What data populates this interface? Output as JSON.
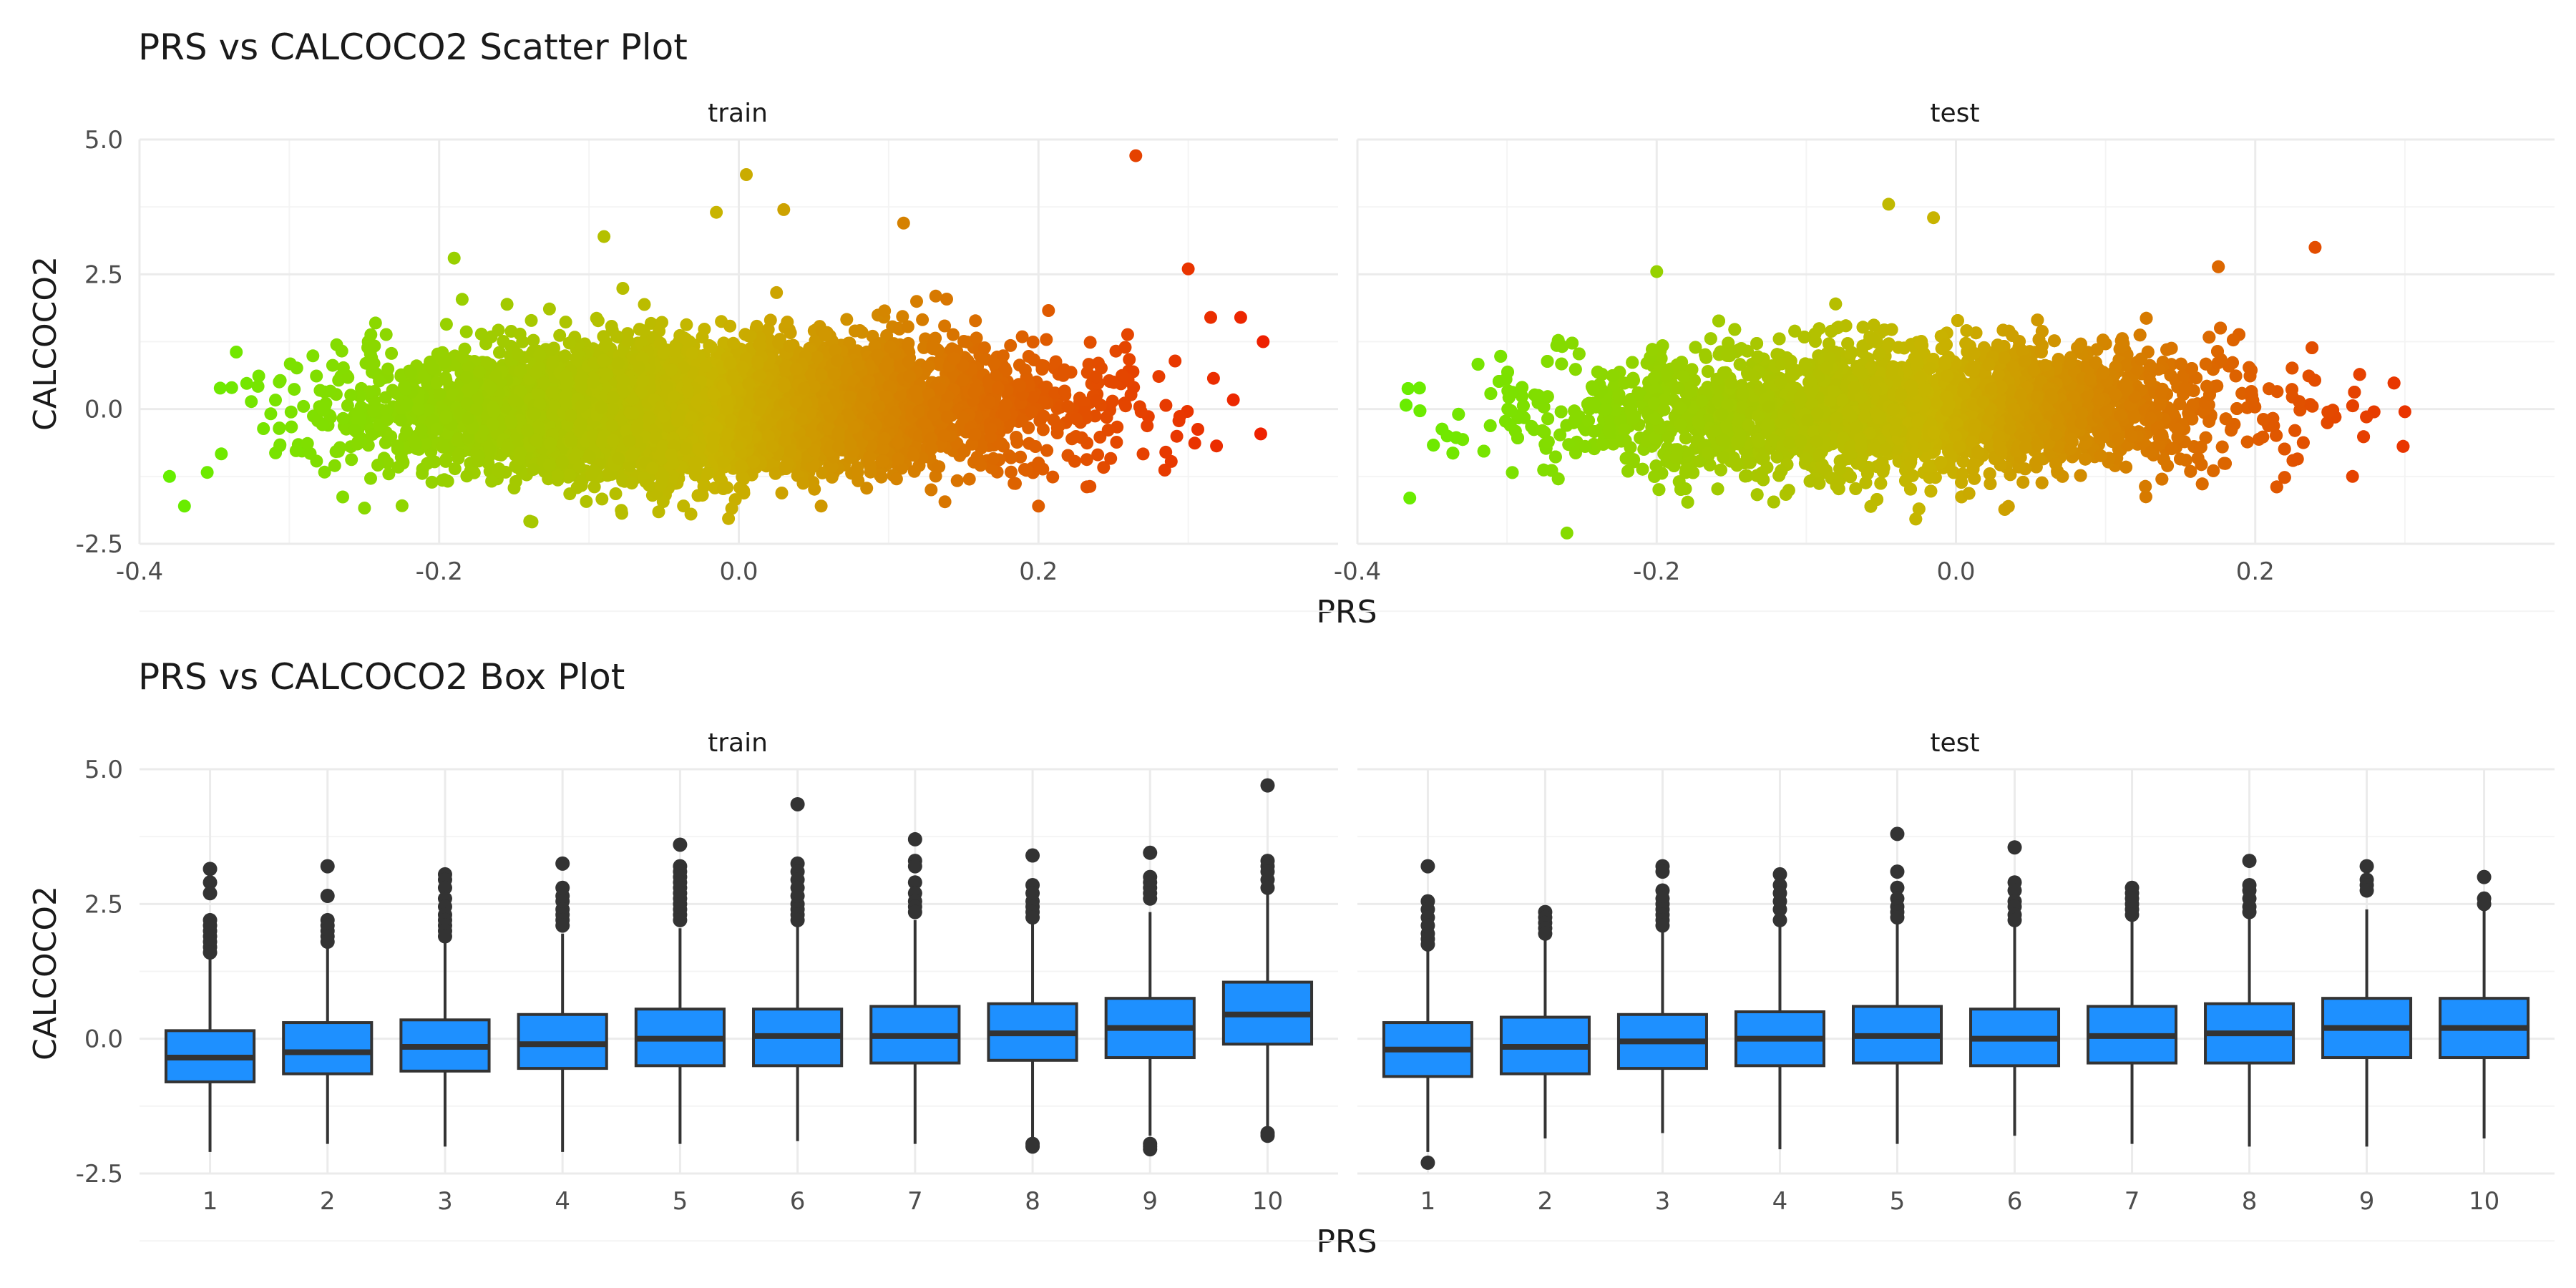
{
  "chart_data": [
    {
      "type": "scatter",
      "title": "PRS vs CALCOCO2 Scatter Plot",
      "xlabel": "PRS",
      "ylabel": "CALCOCO2",
      "panels": [
        "train",
        "test"
      ],
      "xlim": [
        -0.4,
        0.4
      ],
      "ylim": [
        -2.5,
        5.0
      ],
      "x_ticks": [
        "-0.4",
        "-0.2",
        "0.0",
        "0.2"
      ],
      "y_ticks": [
        "5.0",
        "2.5",
        "0.0",
        "-2.5"
      ],
      "color_scale": {
        "low": "#66ee00",
        "mid": "#c8b400",
        "high": "#ee2000"
      },
      "grid": true,
      "legend": "none",
      "series": [
        {
          "panel": "train",
          "x_range": [
            -0.38,
            0.35
          ],
          "y_center": 0.0,
          "y_spread": 0.6,
          "outliers": [
            [
              0.005,
              4.35
            ],
            [
              0.265,
              4.7
            ],
            [
              -0.38,
              -1.25
            ],
            [
              -0.37,
              -1.8
            ],
            [
              0.35,
              1.25
            ],
            [
              0.335,
              1.7
            ],
            [
              0.315,
              1.7
            ],
            [
              0.3,
              2.6
            ],
            [
              0.2,
              -1.8
            ],
            [
              0.285,
              -0.8
            ],
            [
              -0.19,
              2.8
            ],
            [
              -0.09,
              3.2
            ],
            [
              0.03,
              3.7
            ],
            [
              -0.015,
              3.65
            ],
            [
              0.11,
              3.45
            ]
          ]
        },
        {
          "panel": "test",
          "x_range": [
            -0.37,
            0.3
          ],
          "y_center": 0.0,
          "y_spread": 0.6,
          "outliers": [
            [
              -0.365,
              -1.65
            ],
            [
              0.3,
              -0.05
            ],
            [
              -0.2,
              2.55
            ],
            [
              -0.045,
              3.8
            ],
            [
              -0.015,
              3.55
            ],
            [
              0.24,
              3.0
            ],
            [
              -0.26,
              -2.3
            ],
            [
              0.265,
              -1.25
            ],
            [
              -0.34,
              -0.5
            ]
          ]
        }
      ]
    },
    {
      "type": "box",
      "title": "PRS vs CALCOCO2 Box Plot",
      "xlabel": "PRS",
      "ylabel": "CALCOCO2",
      "panels": [
        "train",
        "test"
      ],
      "categories": [
        "1",
        "2",
        "3",
        "4",
        "5",
        "6",
        "7",
        "8",
        "9",
        "10"
      ],
      "ylim": [
        -2.5,
        5.0
      ],
      "y_ticks": [
        "5.0",
        "2.5",
        "0.0",
        "-2.5"
      ],
      "fill": "#1e90ff",
      "grid": true,
      "series": [
        {
          "panel": "train",
          "boxes": [
            {
              "q1": -0.8,
              "median": -0.35,
              "q3": 0.15,
              "low": -2.1,
              "high": 1.5,
              "outliers": [
                3.15,
                2.9,
                2.7,
                2.2,
                2.1,
                2.0,
                1.9,
                1.8,
                1.7,
                1.6
              ]
            },
            {
              "q1": -0.65,
              "median": -0.25,
              "q3": 0.3,
              "low": -1.95,
              "high": 1.7,
              "outliers": [
                3.2,
                2.65,
                2.2,
                2.1,
                2.0,
                1.9,
                1.8
              ]
            },
            {
              "q1": -0.6,
              "median": -0.15,
              "q3": 0.35,
              "low": -2.0,
              "high": 1.8,
              "outliers": [
                3.05,
                2.95,
                2.8,
                2.6,
                2.45,
                2.3,
                2.2,
                2.1,
                2.0,
                1.9
              ]
            },
            {
              "q1": -0.55,
              "median": -0.1,
              "q3": 0.45,
              "low": -2.1,
              "high": 1.95,
              "outliers": [
                3.25,
                2.8,
                2.65,
                2.55,
                2.4,
                2.3,
                2.2,
                2.1
              ]
            },
            {
              "q1": -0.5,
              "median": 0.0,
              "q3": 0.55,
              "low": -1.95,
              "high": 2.05,
              "outliers": [
                3.6,
                3.2,
                3.1,
                3.0,
                2.9,
                2.8,
                2.7,
                2.6,
                2.5,
                2.4,
                2.3,
                2.2
              ]
            },
            {
              "q1": -0.5,
              "median": 0.05,
              "q3": 0.55,
              "low": -1.9,
              "high": 2.1,
              "outliers": [
                4.35,
                3.25,
                3.1,
                2.95,
                2.8,
                2.65,
                2.5,
                2.4,
                2.3,
                2.2
              ]
            },
            {
              "q1": -0.45,
              "median": 0.05,
              "q3": 0.6,
              "low": -1.95,
              "high": 2.2,
              "outliers": [
                3.7,
                3.3,
                3.2,
                2.9,
                2.7,
                2.55,
                2.45,
                2.35
              ]
            },
            {
              "q1": -0.4,
              "median": 0.1,
              "q3": 0.65,
              "low": -1.85,
              "high": 2.15,
              "outliers": [
                3.4,
                2.85,
                2.7,
                2.55,
                2.45,
                2.35,
                2.25,
                -1.95,
                -2.0
              ]
            },
            {
              "q1": -0.35,
              "median": 0.2,
              "q3": 0.75,
              "low": -1.8,
              "high": 2.35,
              "outliers": [
                3.45,
                3.0,
                2.9,
                2.8,
                2.7,
                2.6,
                -1.95,
                -2.0,
                -2.05
              ]
            },
            {
              "q1": -0.1,
              "median": 0.45,
              "q3": 1.05,
              "low": -1.7,
              "high": 2.7,
              "outliers": [
                4.7,
                3.3,
                3.2,
                3.1,
                2.95,
                2.8,
                -1.75,
                -1.8
              ]
            }
          ]
        },
        {
          "panel": "test",
          "boxes": [
            {
              "q1": -0.7,
              "median": -0.2,
              "q3": 0.3,
              "low": -2.1,
              "high": 1.75,
              "outliers": [
                3.2,
                2.55,
                2.4,
                2.25,
                2.1,
                1.95,
                1.85,
                1.75,
                -2.3
              ]
            },
            {
              "q1": -0.65,
              "median": -0.15,
              "q3": 0.4,
              "low": -1.85,
              "high": 1.9,
              "outliers": [
                2.35,
                2.25,
                2.15,
                2.05,
                1.95
              ]
            },
            {
              "q1": -0.55,
              "median": -0.05,
              "q3": 0.45,
              "low": -1.75,
              "high": 2.0,
              "outliers": [
                3.2,
                3.1,
                2.75,
                2.6,
                2.5,
                2.4,
                2.3,
                2.2,
                2.1
              ]
            },
            {
              "q1": -0.5,
              "median": 0.0,
              "q3": 0.5,
              "low": -2.05,
              "high": 2.1,
              "outliers": [
                3.05,
                2.85,
                2.7,
                2.55,
                2.4,
                2.2
              ]
            },
            {
              "q1": -0.45,
              "median": 0.05,
              "q3": 0.6,
              "low": -1.95,
              "high": 2.2,
              "outliers": [
                3.8,
                3.1,
                2.8,
                2.6,
                2.45,
                2.35,
                2.25
              ]
            },
            {
              "q1": -0.5,
              "median": 0.0,
              "q3": 0.55,
              "low": -1.8,
              "high": 2.15,
              "outliers": [
                3.55,
                2.9,
                2.75,
                2.55,
                2.45,
                2.3,
                2.2
              ]
            },
            {
              "q1": -0.45,
              "median": 0.05,
              "q3": 0.6,
              "low": -1.95,
              "high": 2.2,
              "outliers": [
                2.8,
                2.7,
                2.6,
                2.5,
                2.4,
                2.3
              ]
            },
            {
              "q1": -0.45,
              "median": 0.1,
              "q3": 0.65,
              "low": -2.0,
              "high": 2.3,
              "outliers": [
                3.3,
                2.85,
                2.75,
                2.6,
                2.45,
                2.35
              ]
            },
            {
              "q1": -0.35,
              "median": 0.2,
              "q3": 0.75,
              "low": -2.0,
              "high": 2.4,
              "outliers": [
                3.2,
                2.95,
                2.85,
                2.75
              ]
            },
            {
              "q1": -0.35,
              "median": 0.2,
              "q3": 0.75,
              "low": -1.85,
              "high": 2.4,
              "outliers": [
                3.0,
                2.6,
                2.5
              ]
            }
          ]
        }
      ]
    }
  ]
}
